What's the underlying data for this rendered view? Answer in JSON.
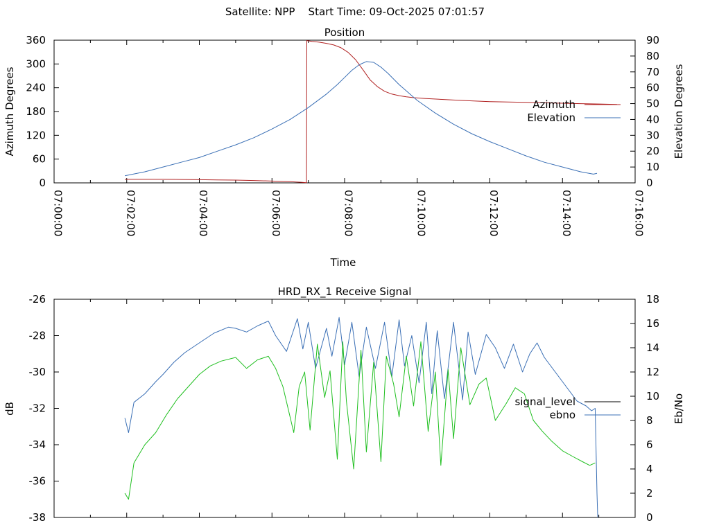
{
  "page": {
    "header": "Satellite: NPP    Start Time: 09-Oct-2025 07:01:57"
  },
  "colors": {
    "azimuth": "#b02020",
    "elevation": "#3a6fb5",
    "signal_level": "#000000",
    "ebno": "#3a6fb5",
    "green_trace": "#1fbf1f",
    "axis": "#000000"
  },
  "chart_data": [
    {
      "type": "line",
      "title": "Position",
      "xlabel": "Time",
      "ylabel": "Azimuth Degrees",
      "y2label": "Elevation Degrees",
      "xlim_minutes": [
        0,
        16
      ],
      "ylim": [
        0,
        360
      ],
      "y2lim": [
        0,
        90
      ],
      "x_tick_labels": [
        "07:00:00",
        "07:02:00",
        "07:04:00",
        "07:06:00",
        "07:08:00",
        "07:10:00",
        "07:12:00",
        "07:14:00",
        "07:16:00"
      ],
      "y_tick_labels": [
        "0",
        "60",
        "120",
        "180",
        "240",
        "300",
        "360"
      ],
      "y2_tick_labels": [
        "0",
        "10",
        "20",
        "30",
        "40",
        "50",
        "60",
        "70",
        "80",
        "90"
      ],
      "legend_position": "right",
      "series": [
        {
          "name": "Azimuth",
          "axis": "y",
          "x_minutes": [
            1.95,
            2.5,
            3.0,
            3.5,
            4.0,
            4.5,
            5.0,
            5.5,
            6.0,
            6.5,
            6.8,
            6.95,
            6.96,
            7.1,
            7.3,
            7.5,
            7.7,
            7.9,
            8.1,
            8.3,
            8.5,
            8.7,
            8.9,
            9.1,
            9.3,
            9.5,
            9.7,
            9.9,
            10.2,
            10.6,
            11.0,
            11.5,
            12.0,
            12.5,
            13.0,
            13.5,
            14.0,
            14.5,
            15.0,
            15.5
          ],
          "values": [
            9,
            9,
            9,
            8.5,
            8,
            7.5,
            7,
            6,
            4.5,
            3,
            1.5,
            0.5,
            359,
            357,
            355,
            352,
            348,
            341,
            329,
            311,
            286,
            260,
            243,
            231,
            224,
            220,
            217,
            215,
            213,
            211,
            209,
            207,
            205,
            204,
            203,
            202,
            201,
            200,
            199,
            198
          ]
        },
        {
          "name": "Elevation",
          "axis": "y2",
          "x_minutes": [
            1.95,
            2.5,
            3.0,
            3.5,
            4.0,
            4.5,
            5.0,
            5.5,
            6.0,
            6.5,
            7.0,
            7.5,
            7.8,
            8.0,
            8.2,
            8.4,
            8.6,
            8.8,
            9.0,
            9.2,
            9.5,
            10.0,
            10.5,
            11.0,
            11.5,
            12.0,
            12.5,
            13.0,
            13.5,
            14.0,
            14.5,
            14.85,
            14.95
          ],
          "values": [
            4.5,
            7,
            10,
            13,
            16,
            20,
            24,
            28.5,
            34,
            40,
            47.5,
            56,
            62,
            66.5,
            71,
            74.5,
            76.5,
            76,
            73,
            69,
            62,
            52,
            44,
            37,
            31,
            26,
            21.5,
            17,
            13,
            10,
            7,
            5.5,
            6
          ]
        }
      ]
    },
    {
      "type": "line",
      "title": "HRD_RX_1 Receive Signal",
      "xlabel": "",
      "ylabel": "dB",
      "y2label": "Eb/No",
      "xlim_minutes": [
        0,
        16
      ],
      "ylim": [
        -38,
        -26
      ],
      "y2lim": [
        0,
        18
      ],
      "y_tick_labels": [
        "-38",
        "-36",
        "-34",
        "-32",
        "-30",
        "-28",
        "-26"
      ],
      "y2_tick_labels": [
        "0",
        "2",
        "4",
        "6",
        "8",
        "10",
        "12",
        "14",
        "16",
        "18"
      ],
      "legend_position": "right",
      "series": [
        {
          "name": "signal_level",
          "axis": "y",
          "x_minutes": [],
          "values": []
        },
        {
          "name": "ebno",
          "axis": "y2",
          "x_minutes": [
            1.95,
            2.05,
            2.2,
            2.5,
            2.8,
            3.0,
            3.3,
            3.6,
            4.0,
            4.4,
            4.8,
            5.0,
            5.3,
            5.6,
            5.9,
            6.1,
            6.4,
            6.7,
            6.85,
            7.0,
            7.2,
            7.5,
            7.65,
            7.85,
            8.0,
            8.2,
            8.4,
            8.6,
            8.85,
            9.1,
            9.3,
            9.5,
            9.65,
            9.85,
            10.05,
            10.25,
            10.4,
            10.55,
            10.75,
            11.0,
            11.25,
            11.4,
            11.6,
            11.9,
            12.15,
            12.4,
            12.65,
            12.9,
            13.1,
            13.3,
            13.5,
            13.8,
            14.1,
            14.4,
            14.65,
            14.8,
            14.9,
            14.95,
            14.97
          ],
          "values": [
            8.2,
            7.0,
            9.5,
            10.2,
            11.2,
            11.8,
            12.8,
            13.6,
            14.4,
            15.2,
            15.7,
            15.6,
            15.3,
            15.8,
            16.2,
            15.0,
            13.7,
            16.4,
            13.9,
            16.1,
            12.3,
            15.6,
            13.3,
            16.5,
            12.6,
            16.1,
            11.6,
            15.7,
            12.3,
            16.1,
            11.6,
            16.3,
            12.5,
            15.0,
            11.1,
            16.1,
            10.2,
            15.4,
            9.8,
            16.1,
            9.7,
            15.3,
            11.8,
            15.1,
            14.0,
            12.3,
            14.3,
            12.0,
            13.5,
            14.4,
            13.2,
            12.0,
            10.8,
            9.6,
            9.2,
            8.8,
            9.0,
            2.0,
            0.0
          ]
        },
        {
          "name": "",
          "axis": "y2",
          "x_minutes": [
            1.95,
            2.05,
            2.2,
            2.5,
            2.8,
            3.1,
            3.4,
            3.7,
            4.0,
            4.3,
            4.6,
            5.0,
            5.3,
            5.6,
            5.9,
            6.1,
            6.3,
            6.6,
            6.75,
            6.9,
            7.05,
            7.25,
            7.45,
            7.6,
            7.8,
            7.95,
            8.05,
            8.25,
            8.45,
            8.6,
            8.8,
            9.0,
            9.15,
            9.35,
            9.5,
            9.7,
            9.9,
            10.1,
            10.3,
            10.5,
            10.65,
            10.85,
            11.0,
            11.2,
            11.45,
            11.7,
            11.9,
            12.15,
            12.45,
            12.7,
            12.95,
            13.2,
            13.45,
            13.7,
            14.0,
            14.3,
            14.55,
            14.75,
            14.9
          ],
          "values": [
            2.0,
            1.5,
            4.5,
            6.0,
            7.0,
            8.5,
            9.8,
            10.8,
            11.8,
            12.5,
            12.9,
            13.2,
            12.3,
            13.0,
            13.3,
            12.3,
            10.8,
            7.0,
            10.8,
            12.0,
            7.2,
            14.3,
            9.9,
            12.1,
            4.8,
            14.5,
            9.6,
            4.0,
            13.8,
            5.4,
            12.8,
            4.6,
            13.3,
            11.0,
            8.3,
            13.3,
            9.2,
            14.5,
            7.1,
            12.0,
            4.3,
            12.2,
            6.5,
            14.0,
            9.3,
            11.0,
            11.5,
            8.0,
            9.4,
            10.7,
            10.2,
            8.0,
            7.1,
            6.3,
            5.5,
            5.0,
            4.6,
            4.3,
            4.5
          ]
        }
      ]
    }
  ]
}
